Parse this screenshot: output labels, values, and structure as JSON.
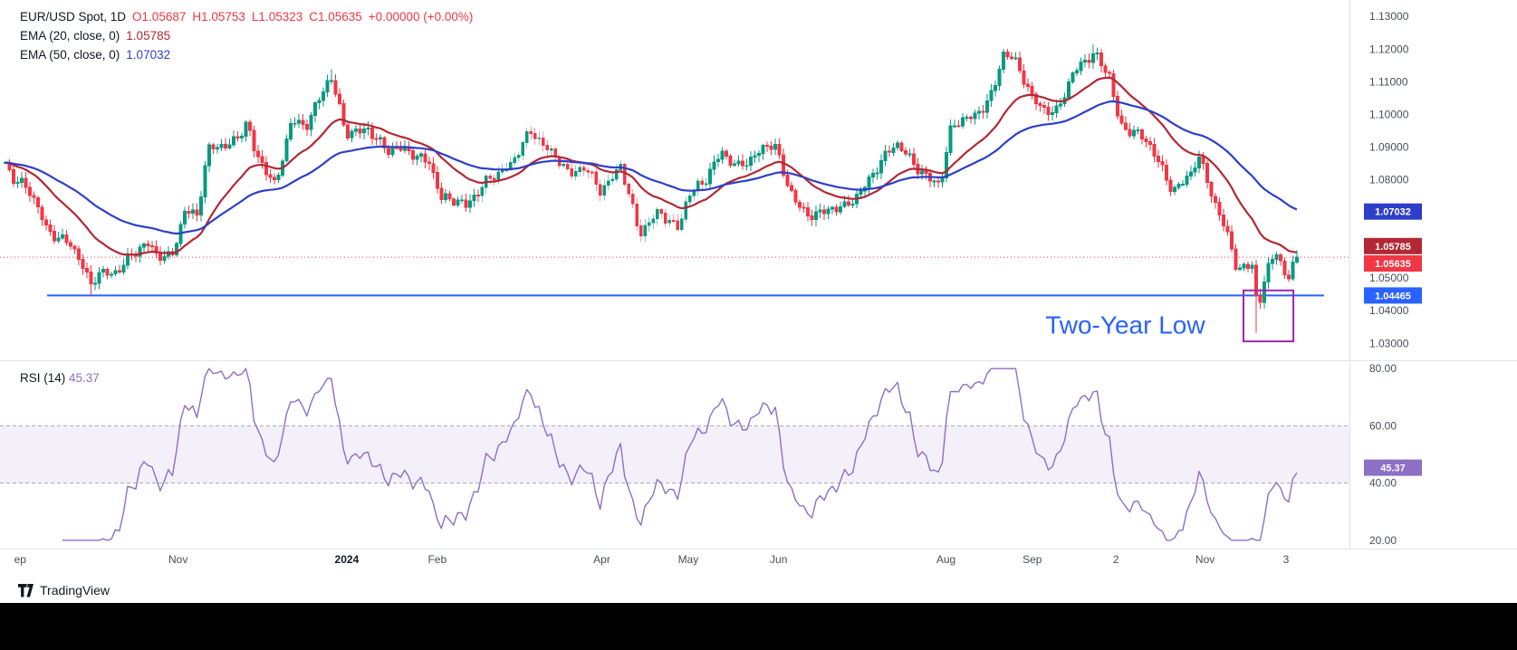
{
  "legend": {
    "title": "EUR/USD Spot, 1D",
    "open": "O1.05687",
    "high": "H1.05753",
    "low": "L1.05323",
    "close": "C1.05635",
    "change": "+0.00000 (+0.00%)",
    "ema20_label": "EMA (20, close, 0)",
    "ema20_value": "1.05785",
    "ema50_label": "EMA (50, close, 0)",
    "ema50_value": "1.07032",
    "rsi_label": "RSI (14)",
    "rsi_value": "45.37"
  },
  "footer": {
    "brand": "TradingView"
  },
  "chart_data": {
    "type": "candlestick",
    "symbol": "EUR/USD Spot",
    "timeframe": "1D",
    "current_ohlc": {
      "open": 1.05687,
      "high": 1.05753,
      "low": 1.05323,
      "close": 1.05635,
      "change_abs": "+0.00000",
      "change_pct": "+0.00%"
    },
    "indicators": [
      {
        "name": "EMA",
        "length": 20,
        "value": 1.05785,
        "color": "#b22833"
      },
      {
        "name": "EMA",
        "length": 50,
        "value": 1.07032,
        "color": "#2d3fc9"
      },
      {
        "name": "RSI",
        "length": 14,
        "value": 45.37,
        "color": "#8d6fc5"
      }
    ],
    "y_axis": {
      "range": [
        1.0262,
        1.1317
      ],
      "ticks": [
        {
          "label": "1.13000",
          "price": 1.13
        },
        {
          "label": "1.12000",
          "price": 1.12
        },
        {
          "label": "1.11000",
          "price": 1.11
        },
        {
          "label": "1.10000",
          "price": 1.1
        },
        {
          "label": "1.09000",
          "price": 1.09
        },
        {
          "label": "1.08000",
          "price": 1.08
        },
        {
          "label": "1.05000",
          "price": 1.05
        },
        {
          "label": "1.04000",
          "price": 1.04
        },
        {
          "label": "1.03000",
          "price": 1.03
        }
      ]
    },
    "price_badges": [
      {
        "label": "1.07032",
        "price": 1.07032,
        "color": "#2d3fc9"
      },
      {
        "label": "1.05785",
        "price": 1.05785,
        "color": "#b22833"
      },
      {
        "label": "1.05635",
        "price": 1.05635,
        "color": "#f23645"
      },
      {
        "label": "1.04465",
        "price": 1.04465,
        "color": "#2962ff"
      }
    ],
    "support_line": {
      "price": 1.04465,
      "color": "#2962ff"
    },
    "last_price_line": {
      "price": 1.05635,
      "color": "#f23645"
    },
    "annotation": {
      "text": "Two-Year Low",
      "color": "#2962ff",
      "t_end": 0.893,
      "price": 1.033,
      "font_size": 28
    },
    "highlight_box": {
      "t1": 0.9215,
      "t2": 0.9585,
      "price_top": 1.0462,
      "price_bottom": 1.0306,
      "color": "#9c27b0"
    },
    "candles": {
      "count": 318,
      "t_start": 0.004,
      "t_end": 0.961,
      "up_color": "#089981",
      "down_color": "#f23645",
      "price_anchors": [
        [
          0.0,
          1.0895
        ],
        [
          0.01,
          1.079
        ],
        [
          0.023,
          1.0755
        ],
        [
          0.035,
          1.066
        ],
        [
          0.052,
          1.0605
        ],
        [
          0.067,
          1.0468
        ],
        [
          0.073,
          1.0515
        ],
        [
          0.085,
          1.053
        ],
        [
          0.098,
          1.057
        ],
        [
          0.11,
          1.059
        ],
        [
          0.116,
          1.0565
        ],
        [
          0.127,
          1.0575
        ],
        [
          0.137,
          1.0718
        ],
        [
          0.146,
          1.0685
        ],
        [
          0.154,
          1.0878
        ],
        [
          0.168,
          1.091
        ],
        [
          0.175,
          1.0935
        ],
        [
          0.183,
          1.099
        ],
        [
          0.189,
          1.088
        ],
        [
          0.204,
          1.0765
        ],
        [
          0.216,
          1.099
        ],
        [
          0.227,
          1.098
        ],
        [
          0.245,
          1.1105
        ],
        [
          0.256,
          1.094
        ],
        [
          0.272,
          1.0972
        ],
        [
          0.287,
          1.088
        ],
        [
          0.302,
          1.0885
        ],
        [
          0.318,
          1.087
        ],
        [
          0.327,
          1.0745
        ],
        [
          0.345,
          1.071
        ],
        [
          0.362,
          1.082
        ],
        [
          0.379,
          1.0838
        ],
        [
          0.393,
          1.094
        ],
        [
          0.401,
          1.0925
        ],
        [
          0.416,
          1.0865
        ],
        [
          0.422,
          1.0808
        ],
        [
          0.433,
          1.0826
        ],
        [
          0.445,
          1.077
        ],
        [
          0.46,
          1.0857
        ],
        [
          0.474,
          1.062
        ],
        [
          0.489,
          1.0702
        ],
        [
          0.503,
          1.0665
        ],
        [
          0.51,
          1.0762
        ],
        [
          0.522,
          1.078
        ],
        [
          0.535,
          1.0882
        ],
        [
          0.547,
          1.0855
        ],
        [
          0.562,
          1.0878
        ],
        [
          0.574,
          1.09
        ],
        [
          0.582,
          1.08
        ],
        [
          0.597,
          1.0705
        ],
        [
          0.612,
          1.0692
        ],
        [
          0.626,
          1.0712
        ],
        [
          0.647,
          1.0828
        ],
        [
          0.664,
          1.0898
        ],
        [
          0.68,
          1.0845
        ],
        [
          0.697,
          1.079
        ],
        [
          0.705,
          1.095
        ],
        [
          0.722,
          1.0995
        ],
        [
          0.736,
          1.108
        ],
        [
          0.743,
          1.119
        ],
        [
          0.751,
          1.116
        ],
        [
          0.765,
          1.1045
        ],
        [
          0.782,
          1.1015
        ],
        [
          0.795,
          1.1115
        ],
        [
          0.811,
          1.118
        ],
        [
          0.822,
          1.1135
        ],
        [
          0.83,
          1.0975
        ],
        [
          0.842,
          1.0935
        ],
        [
          0.853,
          1.089
        ],
        [
          0.869,
          1.078
        ],
        [
          0.882,
          1.082
        ],
        [
          0.888,
          1.0865
        ],
        [
          0.899,
          1.073
        ],
        [
          0.911,
          1.0625
        ],
        [
          0.917,
          1.0538
        ],
        [
          0.928,
          1.0545
        ],
        [
          0.932,
          1.0395
        ],
        [
          0.938,
          1.0495
        ],
        [
          0.944,
          1.056
        ],
        [
          0.946,
          1.0577
        ],
        [
          0.952,
          1.05
        ],
        [
          0.957,
          1.0512
        ],
        [
          0.959,
          1.0588
        ],
        [
          0.961,
          1.0564
        ]
      ],
      "high_spikes": [
        [
          0.245,
          1.1139
        ],
        [
          0.743,
          1.1201
        ],
        [
          0.811,
          1.1214
        ]
      ],
      "low_spikes": [
        [
          0.067,
          1.0448
        ],
        [
          0.932,
          1.0333
        ]
      ]
    },
    "rsi_pane": {
      "range": [
        19,
        81
      ],
      "band": [
        40,
        60
      ],
      "band_fill": "rgba(141,111,197,0.10)",
      "dash_color": "#a9a4bd",
      "ticks": [
        {
          "label": "80.00",
          "v": 80
        },
        {
          "label": "60.00",
          "v": 60
        },
        {
          "label": "40.00",
          "v": 40
        },
        {
          "label": "20.00",
          "v": 20
        }
      ],
      "badge": {
        "label": "45.37",
        "v": 45.37,
        "color": "#8d6fc5"
      }
    },
    "x_axis": {
      "labels": [
        {
          "label": "ep",
          "f": 0.015
        },
        {
          "label": "Nov",
          "f": 0.132
        },
        {
          "label": "2024",
          "f": 0.257,
          "bold": true
        },
        {
          "label": "Feb",
          "f": 0.324
        },
        {
          "label": "Apr",
          "f": 0.446
        },
        {
          "label": "May",
          "f": 0.51
        },
        {
          "label": "Jun",
          "f": 0.577
        },
        {
          "label": "Aug",
          "f": 0.701
        },
        {
          "label": "Sep",
          "f": 0.765
        },
        {
          "label": "2",
          "f": 0.827
        },
        {
          "label": "Nov",
          "f": 0.893
        },
        {
          "label": "3",
          "f": 0.953
        }
      ]
    }
  }
}
